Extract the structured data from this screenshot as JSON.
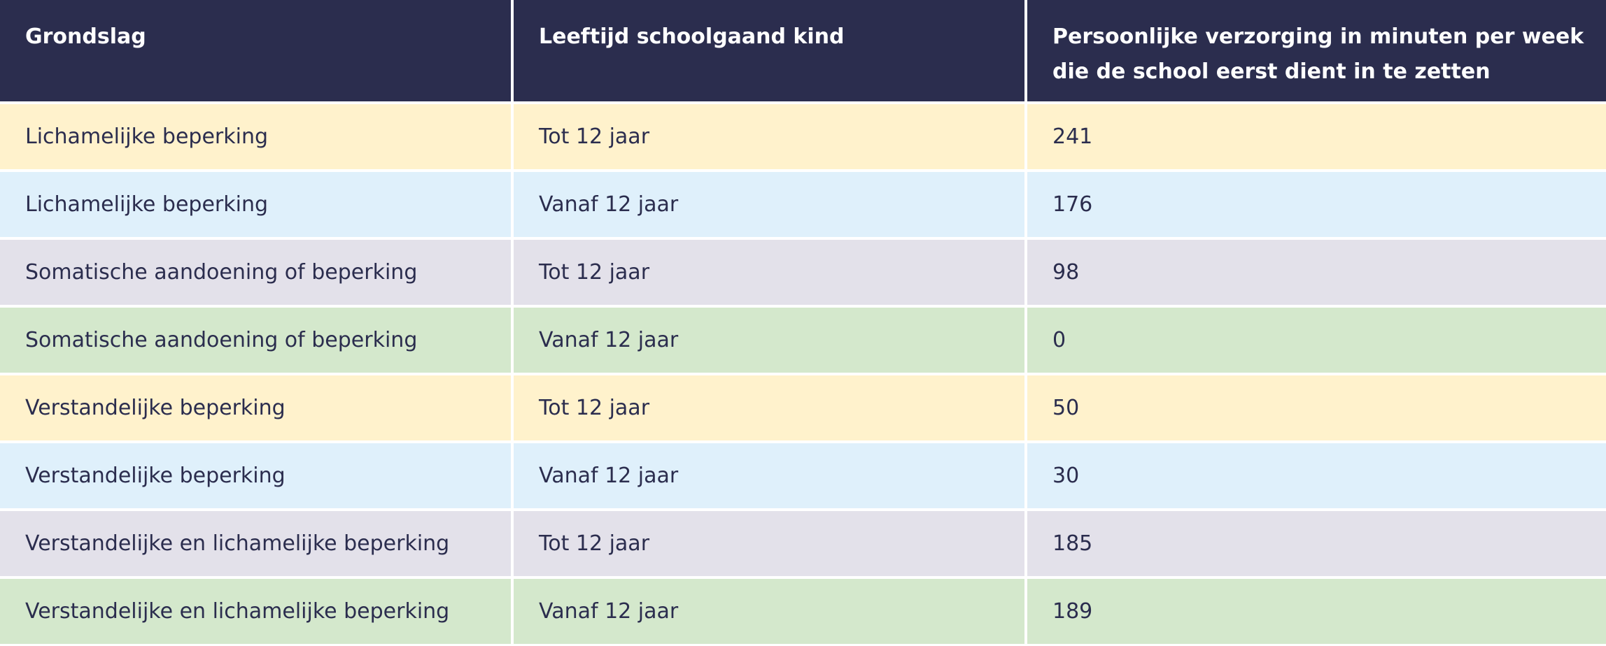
{
  "table": {
    "headers": [
      "Grondslag",
      "Leeftijd schoolgaand kind",
      "Persoonlijke verzorging in minuten per week die de school eerst dient in te zetten"
    ],
    "rows": [
      {
        "grondslag": "Lichamelijke beperking",
        "leeftijd": "Tot 12 jaar",
        "minuten": "241",
        "tint": "#fff2cc"
      },
      {
        "grondslag": "Lichamelijke beperking",
        "leeftijd": "Vanaf 12 jaar",
        "minuten": "176",
        "tint": "#dff0fb"
      },
      {
        "grondslag": "Somatische aandoening of beperking",
        "leeftijd": "Tot 12 jaar",
        "minuten": "98",
        "tint": "#e3e1ea"
      },
      {
        "grondslag": "Somatische aandoening of beperking",
        "leeftijd": "Vanaf 12 jaar",
        "minuten": "0",
        "tint": "#d4e8cc"
      },
      {
        "grondslag": "Verstandelijke beperking",
        "leeftijd": "Tot 12 jaar",
        "minuten": "50",
        "tint": "#fff2cc"
      },
      {
        "grondslag": "Verstandelijke beperking",
        "leeftijd": "Vanaf 12 jaar",
        "minuten": "30",
        "tint": "#dff0fb"
      },
      {
        "grondslag": "Verstandelijke en lichamelijke beperking",
        "leeftijd": "Tot 12 jaar",
        "minuten": "185",
        "tint": "#e3e1ea"
      },
      {
        "grondslag": "Verstandelijke en lichamelijke beperking",
        "leeftijd": "Vanaf 12 jaar",
        "minuten": "189",
        "tint": "#d4e8cc"
      }
    ]
  },
  "colors": {
    "header_bg": "#2b2d4e",
    "header_text": "#ffffff",
    "body_text": "#2b2d4e"
  }
}
